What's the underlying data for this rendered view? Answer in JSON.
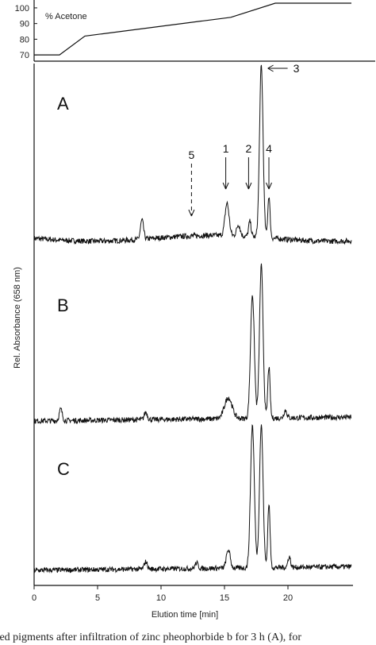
{
  "chart_data": [
    {
      "type": "line",
      "title": "",
      "series_label": "% Acetone",
      "xlabel": "",
      "ylabel": "",
      "yticks": [
        70,
        80,
        90,
        100
      ],
      "ylim": [
        66,
        103
      ],
      "xlim": [
        0,
        25
      ],
      "x": [
        0,
        2,
        4,
        15.5,
        19,
        25
      ],
      "values": [
        70,
        70,
        82,
        94,
        103,
        103
      ]
    },
    {
      "type": "line",
      "title": "",
      "xlabel": "Elution time [min]",
      "ylabel": "Rel. Absorbance (658 nm)",
      "xlim": [
        0,
        25
      ],
      "xticks": [
        0,
        5,
        10,
        15,
        20
      ],
      "grid": false,
      "panels": [
        {
          "label": "A",
          "peaks": [
            {
              "x": 8.5,
              "height": 0.1,
              "width": 0.12
            },
            {
              "x": 15.2,
              "height": 0.17,
              "width": 0.16
            },
            {
              "x": 16.1,
              "height": 0.06,
              "width": 0.14
            },
            {
              "x": 17.0,
              "height": 0.08,
              "width": 0.1
            },
            {
              "x": 17.9,
              "height": 0.9,
              "width": 0.14
            },
            {
              "x": 18.5,
              "height": 0.22,
              "width": 0.09
            }
          ],
          "annotations": [
            {
              "text": "5",
              "x": 12.4,
              "style": "dashed"
            },
            {
              "text": "1",
              "x": 15.1,
              "style": "solid"
            },
            {
              "text": "2",
              "x": 16.9,
              "style": "solid"
            },
            {
              "text": "4",
              "x": 18.5,
              "style": "solid"
            },
            {
              "text": "3",
              "x": 18.1,
              "style": "side-arrow"
            }
          ]
        },
        {
          "label": "B",
          "peaks": [
            {
              "x": 2.1,
              "height": 0.06,
              "width": 0.12
            },
            {
              "x": 8.8,
              "height": 0.04,
              "width": 0.12
            },
            {
              "x": 15.3,
              "height": 0.11,
              "width": 0.3
            },
            {
              "x": 17.2,
              "height": 0.65,
              "width": 0.15
            },
            {
              "x": 17.9,
              "height": 0.8,
              "width": 0.14
            },
            {
              "x": 18.5,
              "height": 0.27,
              "width": 0.09
            },
            {
              "x": 19.8,
              "height": 0.04,
              "width": 0.12
            }
          ],
          "annotations": []
        },
        {
          "label": "C",
          "peaks": [
            {
              "x": 8.8,
              "height": 0.04,
              "width": 0.12
            },
            {
              "x": 12.8,
              "height": 0.03,
              "width": 0.12
            },
            {
              "x": 15.3,
              "height": 0.1,
              "width": 0.15
            },
            {
              "x": 17.2,
              "height": 0.78,
              "width": 0.15
            },
            {
              "x": 17.9,
              "height": 0.78,
              "width": 0.14
            },
            {
              "x": 18.5,
              "height": 0.35,
              "width": 0.09
            },
            {
              "x": 20.1,
              "height": 0.06,
              "width": 0.1
            }
          ],
          "annotations": []
        }
      ]
    }
  ],
  "caption": "sed pigments after infiltration of zinc pheophorbide b for 3 h (A), for"
}
